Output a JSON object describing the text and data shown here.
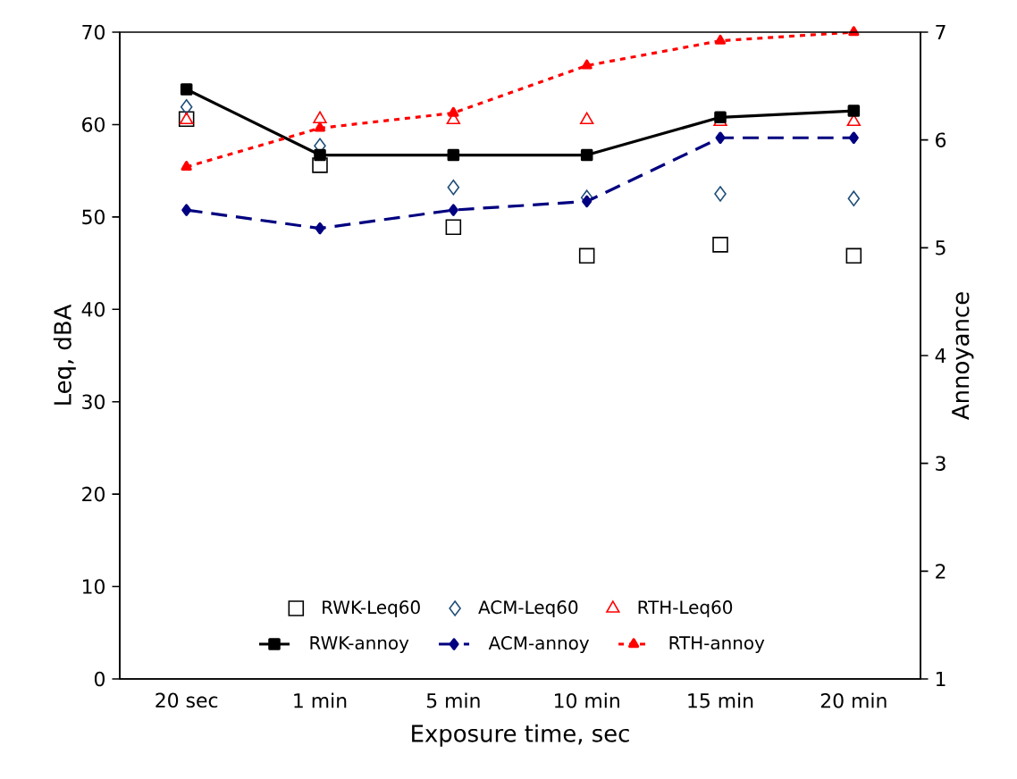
{
  "chart_data": {
    "type": "line",
    "xlabel": "Exposure time, sec",
    "ylabel": "Leq, dBA",
    "y2label": "Annoyance",
    "categories": [
      "20 sec",
      "1 min",
      "5 min",
      "10 min",
      "15 min",
      "20 min"
    ],
    "ylim": [
      0,
      70
    ],
    "yticks": [
      0,
      10,
      20,
      30,
      40,
      50,
      60,
      70
    ],
    "y2lim": [
      1,
      7
    ],
    "y2ticks": [
      1,
      2,
      3,
      4,
      5,
      6,
      7
    ],
    "grid": false,
    "legend": "bottom",
    "series": [
      {
        "name": "RWK-Leq60",
        "type": "scatter",
        "marker": "square",
        "color": "#000000",
        "values": [
          60.6,
          55.6,
          48.9,
          45.8,
          47.0,
          45.8
        ]
      },
      {
        "name": "ACM-Leq60",
        "type": "scatter",
        "marker": "diamond",
        "color": "#1f4e79",
        "values": [
          61.9,
          57.7,
          53.2,
          52.1,
          52.5,
          52.0
        ]
      },
      {
        "name": "RTH-Leq60",
        "type": "scatter",
        "marker": "triangle",
        "color": "#ff0000",
        "values": [
          60.5,
          60.6,
          60.5,
          60.5,
          60.3,
          60.3
        ]
      },
      {
        "name": "RWK-annoy",
        "axis": "y2",
        "marker": "square",
        "line_style": "solid",
        "color": "#000000",
        "values": [
          6.47,
          5.86,
          5.86,
          5.86,
          6.21,
          6.27
        ]
      },
      {
        "name": "ACM-annoy",
        "axis": "y2",
        "marker": "diamond",
        "line_style": "dashed",
        "color": "#000080",
        "values": [
          5.35,
          5.18,
          5.35,
          5.43,
          6.02,
          6.02
        ]
      },
      {
        "name": "RTH-annoy",
        "axis": "y2",
        "marker": "triangle",
        "line_style": "dotted",
        "color": "#ff0000",
        "values": [
          5.75,
          6.11,
          6.25,
          6.69,
          6.92,
          7.0
        ]
      }
    ]
  }
}
